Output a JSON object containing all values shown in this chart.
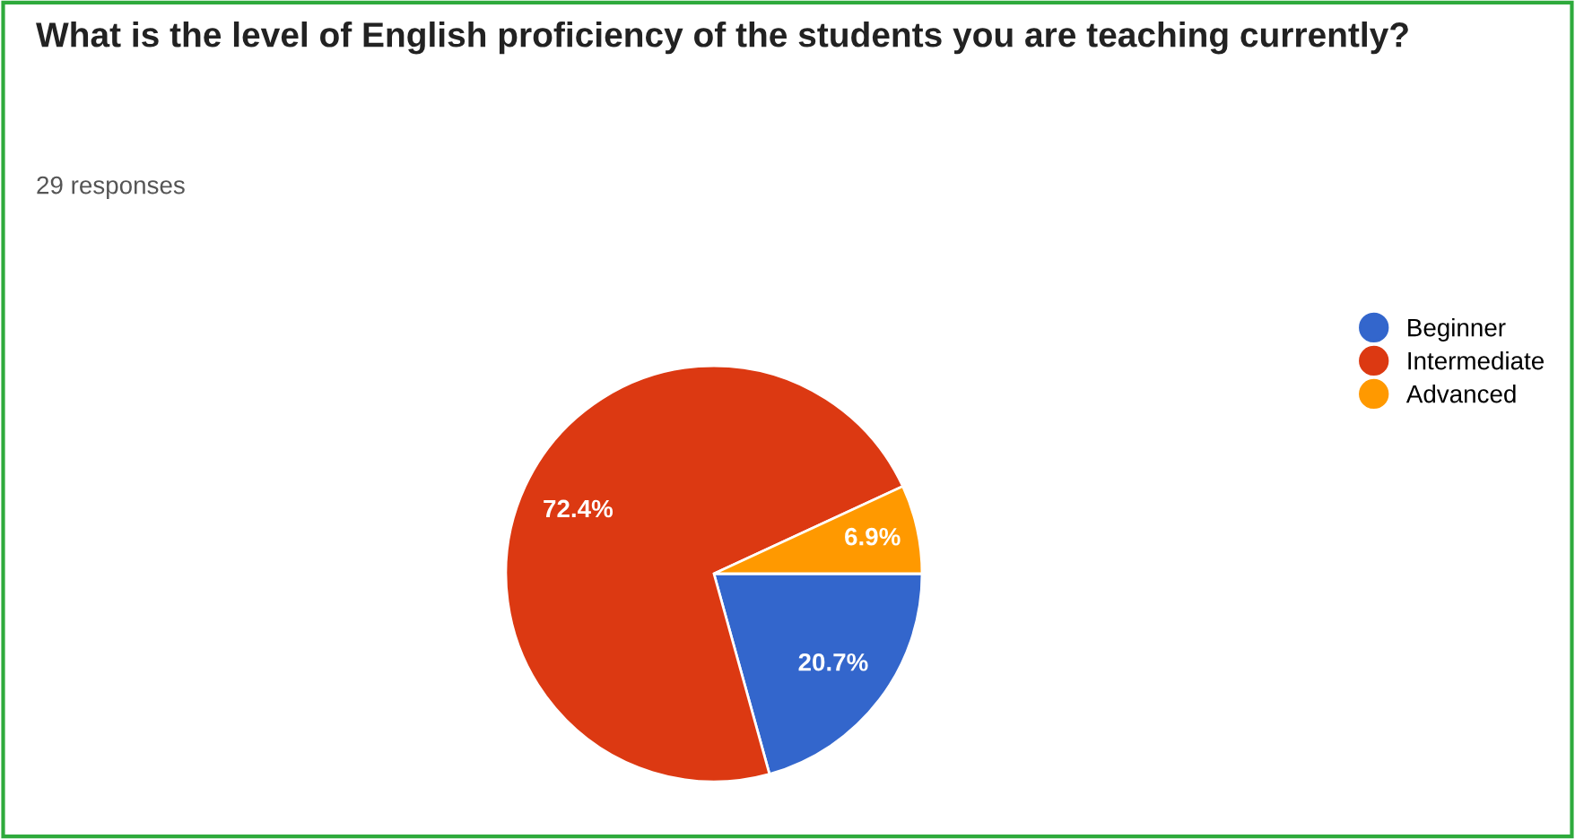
{
  "chart_data": {
    "type": "pie",
    "title": "What is the level of English proficiency of the students you are teaching currently?",
    "subtitle": "29 responses",
    "categories": [
      "Beginner",
      "Intermediate",
      "Advanced"
    ],
    "values": [
      20.7,
      72.4,
      6.9
    ],
    "colors": [
      "#3366cc",
      "#dc3912",
      "#ff9900"
    ],
    "value_labels": [
      "20.7%",
      "72.4%",
      "6.9%"
    ],
    "legend": "top right"
  }
}
